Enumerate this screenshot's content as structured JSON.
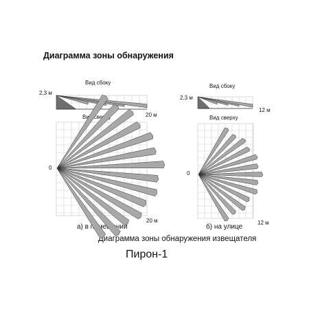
{
  "title": "Диаграмма зоны обнаружения",
  "caption": "Диаграмма зоны обнаружения извещателя",
  "product": "Пирон-1",
  "indoor": {
    "side_label": "Вид сбоку",
    "top_label": "Вид сверху",
    "height_label": "2,3 м",
    "range_label_side": "20 м",
    "range_label_top": "20 м",
    "origin_label": "0",
    "caption": "а) в помещении"
  },
  "outdoor": {
    "side_label": "Вид сбоку",
    "top_label": "Вид сверху",
    "height_label": "2,3 м",
    "range_label_side": "12 м",
    "range_label_top": "12 м",
    "origin_label": "0",
    "caption": "б) на улице"
  },
  "colors": {
    "beam_fill": "#a8a8a8",
    "beam_dark": "#6e6e6e",
    "grid": "#cfcfcf",
    "outline": "#333333"
  }
}
